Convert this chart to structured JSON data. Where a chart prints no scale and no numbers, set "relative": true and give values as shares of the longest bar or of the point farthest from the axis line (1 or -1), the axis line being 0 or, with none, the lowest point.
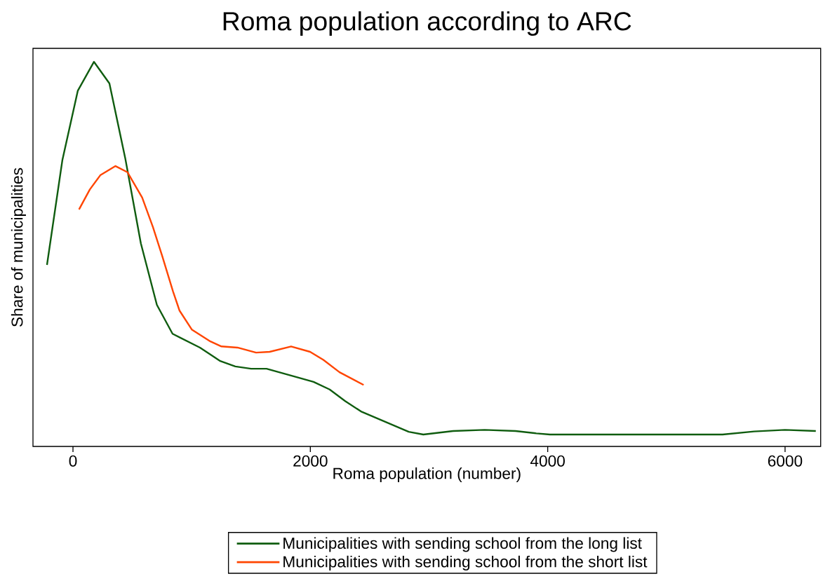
{
  "chart_data": {
    "type": "line",
    "title": "Roma population according to ARC",
    "xlabel": "Roma population (number)",
    "ylabel": "Share of municipalities",
    "relative": true,
    "xlim": [
      -337,
      6300
    ],
    "xticks": [
      0,
      2000,
      4000,
      6000
    ],
    "legend": "bottom",
    "grid": false,
    "marker": "none",
    "line_style": "solid",
    "series": [
      {
        "name": "Municipalities with sending school from the long list",
        "color": "#0f5c0f",
        "x": [
          -219,
          -89,
          41,
          177,
          307,
          440,
          572,
          707,
          839,
          1070,
          1241,
          1368,
          1501,
          1631,
          1885,
          2027,
          2163,
          2293,
          2427,
          2829,
          2952,
          3203,
          3469,
          3729,
          3904,
          4019,
          5473,
          5739,
          5999,
          6259
        ],
        "values": [
          0.472,
          0.745,
          0.925,
          1.0,
          0.944,
          0.75,
          0.528,
          0.368,
          0.293,
          0.257,
          0.222,
          0.208,
          0.202,
          0.202,
          0.18,
          0.168,
          0.148,
          0.118,
          0.091,
          0.038,
          0.031,
          0.04,
          0.043,
          0.04,
          0.034,
          0.031,
          0.031,
          0.039,
          0.043,
          0.04
        ]
      },
      {
        "name": "Municipalities with sending school from the short list",
        "color": "#ff4500",
        "x": [
          51,
          142,
          230,
          357,
          459,
          583,
          674,
          753,
          843,
          898,
          1001,
          1158,
          1251,
          1386,
          1543,
          1657,
          1838,
          1998,
          2110,
          2246,
          2449
        ],
        "values": [
          0.616,
          0.668,
          0.705,
          0.729,
          0.713,
          0.647,
          0.57,
          0.494,
          0.403,
          0.353,
          0.304,
          0.273,
          0.26,
          0.257,
          0.244,
          0.246,
          0.26,
          0.246,
          0.225,
          0.193,
          0.16
        ]
      }
    ]
  }
}
